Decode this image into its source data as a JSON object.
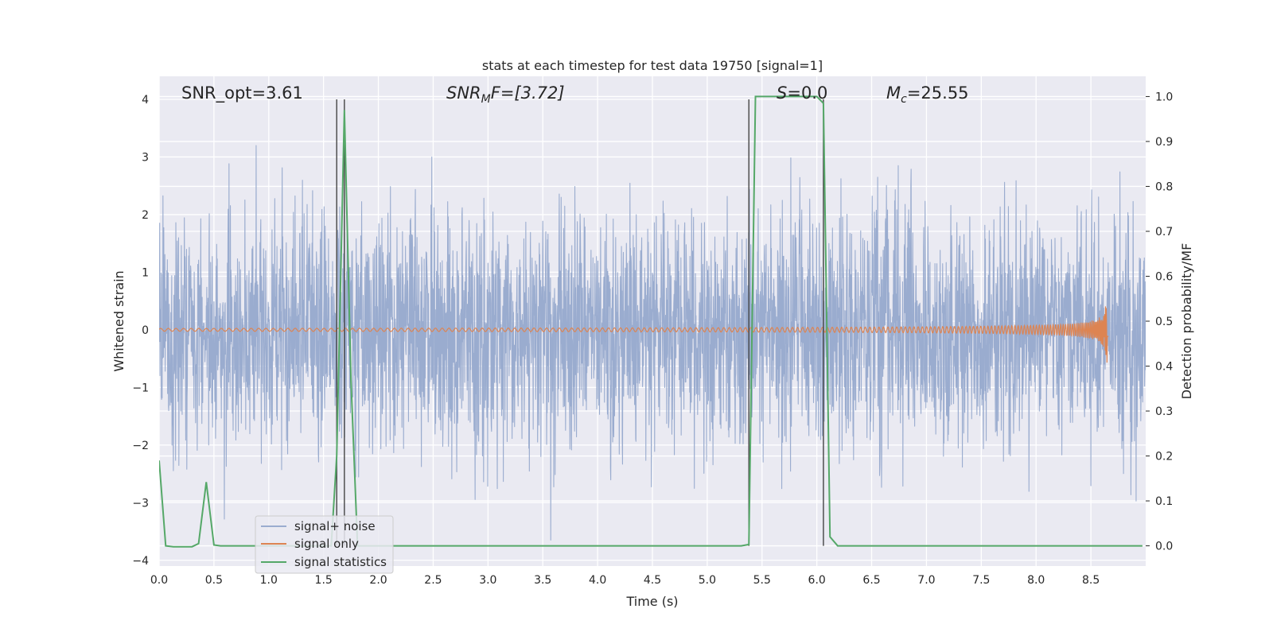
{
  "chart_data": {
    "type": "line",
    "title": "stats at each timestep for test data 19750 [signal=1]",
    "xlabel": "Time (s)",
    "ylabel": "Whitened strain",
    "ylabel_right": "Detection probability/MF",
    "xlim": [
      0,
      9
    ],
    "ylim": [
      -4.1,
      4.4
    ],
    "ylim_right": [
      -0.045,
      1.045
    ],
    "x_ticks": [
      "0.0",
      "0.5",
      "1.0",
      "1.5",
      "2.0",
      "2.5",
      "3.0",
      "3.5",
      "4.0",
      "4.5",
      "5.0",
      "5.5",
      "6.0",
      "6.5",
      "7.0",
      "7.5",
      "8.0",
      "8.5"
    ],
    "y_ticks": [
      "−4",
      "−3",
      "−2",
      "−1",
      "0",
      "1",
      "2",
      "3",
      "4"
    ],
    "y_ticks_right": [
      "0.0",
      "0.1",
      "0.2",
      "0.3",
      "0.4",
      "0.5",
      "0.6",
      "0.7",
      "0.8",
      "0.9",
      "1.0"
    ],
    "grid": true,
    "legend_position": "lower-left",
    "annotations": {
      "snr_opt": "SNR_opt=3.61",
      "snr_mf_main": "SNR",
      "snr_mf_sub": "M",
      "snr_mf_rest": "F=[3.72]",
      "s_main": "S",
      "s_rest": "=0.0",
      "mc_main": "M",
      "mc_sub": "c",
      "mc_rest": "=25.55"
    },
    "vertical_lines": [
      1.62,
      1.69,
      5.38,
      6.06
    ],
    "series": [
      {
        "name": "signal+ noise",
        "color": "#9aaccf",
        "style": "dense noise, approx. Gaussian, sigma 1.0, extremes near ±3.7",
        "x_range": [
          0,
          9
        ]
      },
      {
        "name": "signal only",
        "color": "#dd8452",
        "style": "chirp, amplitude rising to ~0.8 at t=8.65 then ending",
        "x_range": [
          0,
          8.66
        ],
        "peak_amplitude": 0.8,
        "merger_time": 8.65
      },
      {
        "name": "signal statistics",
        "color": "#55a868",
        "axis": "right",
        "points": [
          [
            0.0,
            0.19
          ],
          [
            0.06,
            0.0
          ],
          [
            0.13,
            -0.002
          ],
          [
            0.3,
            -0.002
          ],
          [
            0.36,
            0.005
          ],
          [
            0.43,
            0.142
          ],
          [
            0.5,
            0.002
          ],
          [
            0.56,
            0.0
          ],
          [
            1.57,
            0.0
          ],
          [
            1.62,
            0.2
          ],
          [
            1.69,
            0.97
          ],
          [
            1.75,
            0.37
          ],
          [
            1.81,
            0.0
          ],
          [
            5.31,
            0.0
          ],
          [
            5.38,
            0.003
          ],
          [
            5.44,
            1.0
          ],
          [
            5.5,
            1.0
          ],
          [
            6.0,
            1.0
          ],
          [
            6.06,
            0.985
          ],
          [
            6.12,
            0.02
          ],
          [
            6.19,
            0.0
          ],
          [
            8.97,
            0.0
          ]
        ]
      }
    ]
  }
}
